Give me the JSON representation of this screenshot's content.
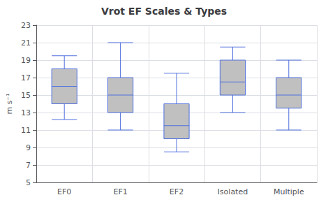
{
  "chart_data": {
    "type": "box",
    "title": "Vrot EF Scales & Types",
    "ylabel": "m s⁻¹",
    "categories": [
      "EF0",
      "EF1",
      "EF2",
      "Isolated",
      "Multiple"
    ],
    "values": [
      [
        12.2,
        14.0,
        16.0,
        18.0,
        19.5
      ],
      [
        11.0,
        13.0,
        15.0,
        17.0,
        21.0
      ],
      [
        8.5,
        10.0,
        11.5,
        14.0,
        17.5
      ],
      [
        13.0,
        15.0,
        16.5,
        19.0,
        20.5
      ],
      [
        11.0,
        13.5,
        15.0,
        17.0,
        19.0
      ]
    ],
    "color": "#c0c0c0",
    "ylim": [
      5,
      23
    ],
    "yticks": [
      5,
      7,
      9,
      11,
      13,
      15,
      17,
      19,
      21,
      23
    ],
    "grid": true
  }
}
